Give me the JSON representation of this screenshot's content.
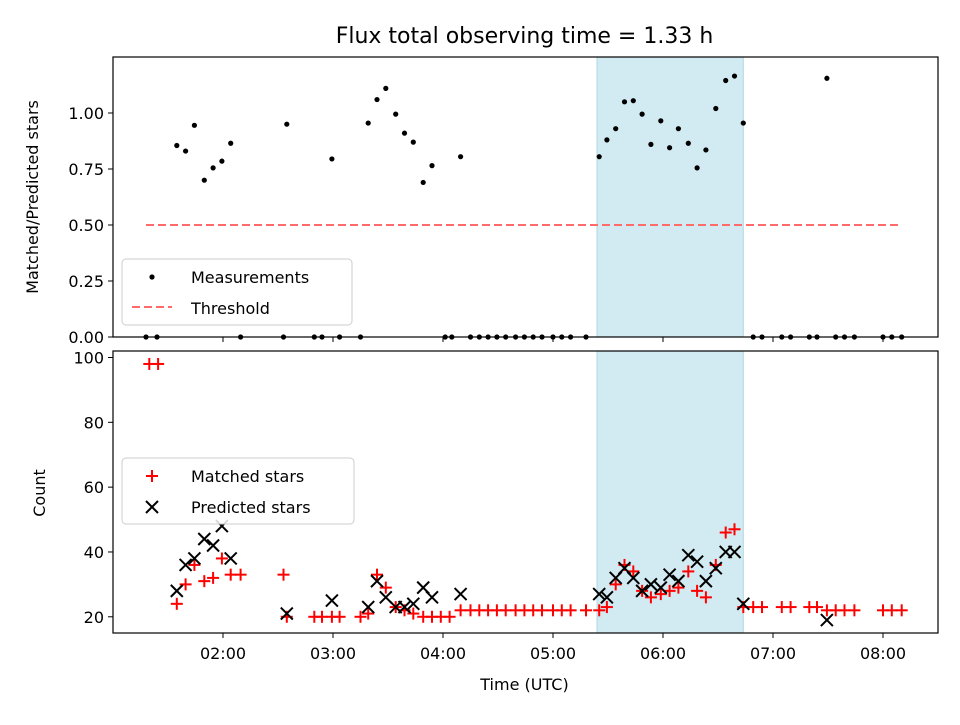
{
  "chart_data": [
    {
      "type": "scatter",
      "title": "Flux total observing time = 1.33 h",
      "xlabel": "",
      "ylabel": "Matched/Predicted stars",
      "xlim_hours": [
        1.0,
        8.5
      ],
      "ylim": [
        0,
        1.25
      ],
      "yticks": [
        0.0,
        0.25,
        0.5,
        0.75,
        1.0
      ],
      "ytick_labels": [
        "0.00",
        "0.25",
        "0.50",
        "0.75",
        "1.00"
      ],
      "grid": false,
      "legend": {
        "placement": "lower-left",
        "entries": [
          "Measurements",
          "Threshold"
        ]
      },
      "highlight_span_hours": [
        5.4,
        6.73
      ],
      "threshold": {
        "y": 0.5,
        "x_hours": [
          1.3,
          8.17
        ],
        "color": "#ff6b6b",
        "style": "dashed"
      },
      "series": [
        {
          "name": "Measurements",
          "marker": "dot",
          "color": "#000000",
          "points": [
            [
              1.3,
              0
            ],
            [
              1.4,
              0
            ],
            [
              1.58,
              0.855
            ],
            [
              1.66,
              0.83
            ],
            [
              1.74,
              0.945
            ],
            [
              1.83,
              0.7
            ],
            [
              1.91,
              0.755
            ],
            [
              1.99,
              0.785
            ],
            [
              2.07,
              0.865
            ],
            [
              2.16,
              0
            ],
            [
              2.55,
              0
            ],
            [
              2.58,
              0.95
            ],
            [
              2.83,
              0
            ],
            [
              2.9,
              0
            ],
            [
              2.99,
              0.795
            ],
            [
              3.06,
              0
            ],
            [
              3.25,
              0
            ],
            [
              3.32,
              0.955
            ],
            [
              3.4,
              1.06
            ],
            [
              3.48,
              1.11
            ],
            [
              3.57,
              0.995
            ],
            [
              3.65,
              0.91
            ],
            [
              3.73,
              0.87
            ],
            [
              3.82,
              0.69
            ],
            [
              3.9,
              0.765
            ],
            [
              4.02,
              0
            ],
            [
              4.08,
              0
            ],
            [
              4.16,
              0.805
            ],
            [
              4.25,
              0
            ],
            [
              4.33,
              0
            ],
            [
              4.41,
              0
            ],
            [
              4.49,
              0
            ],
            [
              4.57,
              0
            ],
            [
              4.66,
              0
            ],
            [
              4.74,
              0
            ],
            [
              4.82,
              0
            ],
            [
              4.9,
              0
            ],
            [
              5.0,
              0
            ],
            [
              5.08,
              0
            ],
            [
              5.16,
              0
            ],
            [
              5.3,
              0
            ],
            [
              5.42,
              0.805
            ],
            [
              5.49,
              0.88
            ],
            [
              5.57,
              0.93
            ],
            [
              5.65,
              1.05
            ],
            [
              5.73,
              1.055
            ],
            [
              5.81,
              0.995
            ],
            [
              5.89,
              0.86
            ],
            [
              5.98,
              0.965
            ],
            [
              6.06,
              0.845
            ],
            [
              6.14,
              0.93
            ],
            [
              6.23,
              0.865
            ],
            [
              6.31,
              0.755
            ],
            [
              6.39,
              0.835
            ],
            [
              6.48,
              1.02
            ],
            [
              6.57,
              1.145
            ],
            [
              6.65,
              1.165
            ],
            [
              6.73,
              0.955
            ],
            [
              6.82,
              0
            ],
            [
              6.9,
              0
            ],
            [
              7.08,
              0
            ],
            [
              7.16,
              0
            ],
            [
              7.33,
              0
            ],
            [
              7.4,
              0
            ],
            [
              7.49,
              1.155
            ],
            [
              7.57,
              0
            ],
            [
              7.65,
              0
            ],
            [
              7.74,
              0
            ],
            [
              8.0,
              0
            ],
            [
              8.08,
              0
            ],
            [
              8.17,
              0
            ]
          ]
        }
      ],
      "x_tick_marks_hours": [
        2,
        3,
        4,
        5,
        6,
        7,
        8
      ]
    },
    {
      "type": "scatter",
      "title": "",
      "xlabel": "Time (UTC)",
      "ylabel": "Count",
      "xlim_hours": [
        1.0,
        8.5
      ],
      "ylim": [
        15,
        102
      ],
      "yticks": [
        20,
        40,
        60,
        80,
        100
      ],
      "ytick_labels": [
        "20",
        "40",
        "60",
        "80",
        "100"
      ],
      "xticks_hours": [
        2,
        3,
        4,
        5,
        6,
        7,
        8
      ],
      "xtick_labels": [
        "02:00",
        "03:00",
        "04:00",
        "05:00",
        "06:00",
        "07:00",
        "08:00"
      ],
      "grid": false,
      "legend": {
        "placement": "center-left",
        "entries": [
          "Matched stars",
          "Predicted stars"
        ]
      },
      "highlight_span_hours": [
        5.4,
        6.73
      ],
      "series": [
        {
          "name": "Matched stars",
          "marker": "plus",
          "color": "#ff0000",
          "points": [
            [
              1.33,
              98
            ],
            [
              1.41,
              98
            ],
            [
              1.58,
              24
            ],
            [
              1.66,
              30
            ],
            [
              1.74,
              36
            ],
            [
              1.83,
              31
            ],
            [
              1.91,
              32
            ],
            [
              1.99,
              38
            ],
            [
              2.07,
              33
            ],
            [
              2.16,
              33
            ],
            [
              2.55,
              33
            ],
            [
              2.58,
              20
            ],
            [
              2.83,
              20
            ],
            [
              2.9,
              20
            ],
            [
              2.99,
              20
            ],
            [
              3.06,
              20
            ],
            [
              3.25,
              20
            ],
            [
              3.32,
              21
            ],
            [
              3.4,
              33
            ],
            [
              3.48,
              29
            ],
            [
              3.57,
              23
            ],
            [
              3.65,
              22
            ],
            [
              3.73,
              21
            ],
            [
              3.82,
              20
            ],
            [
              3.9,
              20
            ],
            [
              3.98,
              20
            ],
            [
              4.06,
              20
            ],
            [
              4.16,
              22
            ],
            [
              4.25,
              22
            ],
            [
              4.33,
              22
            ],
            [
              4.41,
              22
            ],
            [
              4.49,
              22
            ],
            [
              4.57,
              22
            ],
            [
              4.66,
              22
            ],
            [
              4.74,
              22
            ],
            [
              4.82,
              22
            ],
            [
              4.9,
              22
            ],
            [
              5.0,
              22
            ],
            [
              5.08,
              22
            ],
            [
              5.16,
              22
            ],
            [
              5.3,
              22
            ],
            [
              5.42,
              22
            ],
            [
              5.49,
              23
            ],
            [
              5.57,
              30
            ],
            [
              5.65,
              36
            ],
            [
              5.73,
              34
            ],
            [
              5.81,
              28
            ],
            [
              5.89,
              26
            ],
            [
              5.98,
              27
            ],
            [
              6.06,
              28
            ],
            [
              6.14,
              29
            ],
            [
              6.23,
              34
            ],
            [
              6.31,
              28
            ],
            [
              6.39,
              26
            ],
            [
              6.48,
              36
            ],
            [
              6.57,
              46
            ],
            [
              6.65,
              47
            ],
            [
              6.73,
              23
            ],
            [
              6.82,
              23
            ],
            [
              6.9,
              23
            ],
            [
              7.08,
              23
            ],
            [
              7.16,
              23
            ],
            [
              7.33,
              23
            ],
            [
              7.4,
              23
            ],
            [
              7.49,
              22
            ],
            [
              7.57,
              22
            ],
            [
              7.65,
              22
            ],
            [
              7.74,
              22
            ],
            [
              8.0,
              22
            ],
            [
              8.08,
              22
            ],
            [
              8.17,
              22
            ]
          ]
        },
        {
          "name": "Predicted stars",
          "marker": "x",
          "color": "#000000",
          "points": [
            [
              1.58,
              28
            ],
            [
              1.66,
              36
            ],
            [
              1.74,
              38
            ],
            [
              1.83,
              44
            ],
            [
              1.91,
              42
            ],
            [
              1.99,
              48
            ],
            [
              2.07,
              38
            ],
            [
              2.58,
              21
            ],
            [
              2.99,
              25
            ],
            [
              3.32,
              23
            ],
            [
              3.4,
              31
            ],
            [
              3.48,
              26
            ],
            [
              3.57,
              23
            ],
            [
              3.65,
              23
            ],
            [
              3.73,
              24
            ],
            [
              3.82,
              29
            ],
            [
              3.9,
              26
            ],
            [
              4.16,
              27
            ],
            [
              5.42,
              27
            ],
            [
              5.49,
              26
            ],
            [
              5.57,
              32
            ],
            [
              5.65,
              35
            ],
            [
              5.73,
              32
            ],
            [
              5.81,
              28
            ],
            [
              5.89,
              30
            ],
            [
              5.98,
              29
            ],
            [
              6.06,
              33
            ],
            [
              6.14,
              31
            ],
            [
              6.23,
              39
            ],
            [
              6.31,
              37
            ],
            [
              6.39,
              31
            ],
            [
              6.48,
              35
            ],
            [
              6.57,
              40
            ],
            [
              6.65,
              40
            ],
            [
              6.73,
              24
            ],
            [
              7.49,
              19
            ]
          ]
        }
      ]
    }
  ],
  "colors": {
    "highlight": "#add8e6",
    "threshold": "#ff6b6b",
    "matched": "#ff0000",
    "predicted": "#000000",
    "measurement": "#000000"
  }
}
